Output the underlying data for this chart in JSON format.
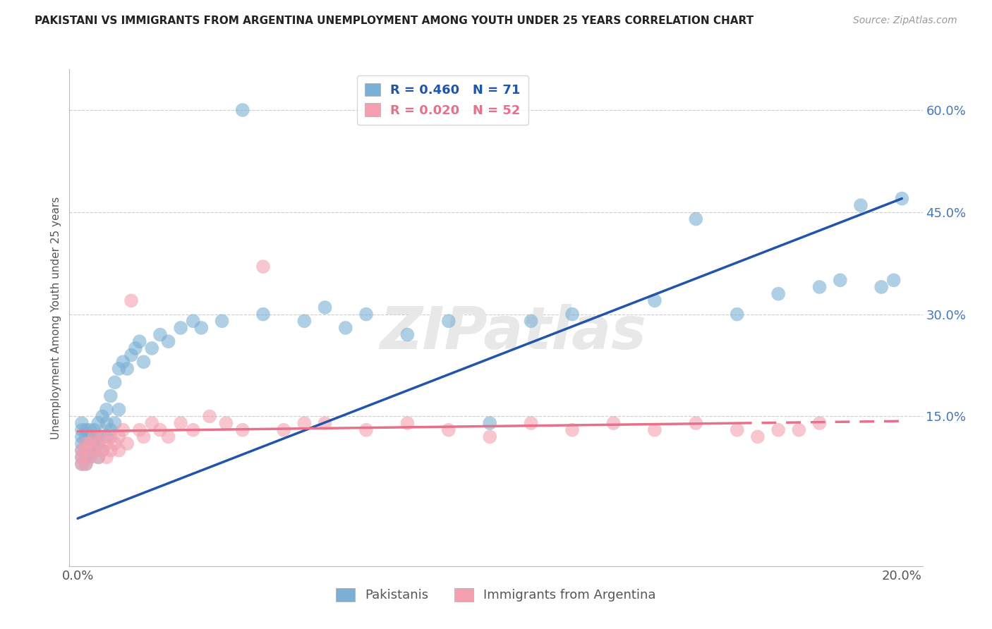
{
  "title": "PAKISTANI VS IMMIGRANTS FROM ARGENTINA UNEMPLOYMENT AMONG YOUTH UNDER 25 YEARS CORRELATION CHART",
  "source": "Source: ZipAtlas.com",
  "ylabel": "Unemployment Among Youth under 25 years",
  "xlim": [
    -0.002,
    0.205
  ],
  "ylim": [
    -0.07,
    0.66
  ],
  "ytick_positions": [
    0.15,
    0.3,
    0.45,
    0.6
  ],
  "ytick_labels": [
    "15.0%",
    "30.0%",
    "45.0%",
    "60.0%"
  ],
  "blue_R": 0.46,
  "blue_N": 71,
  "pink_R": 0.02,
  "pink_N": 52,
  "blue_color": "#7BAFD4",
  "pink_color": "#F4A0B0",
  "blue_line_color": "#2255AA",
  "pink_line_color": "#E8708A",
  "legend_label_blue": "Pakistanis",
  "legend_label_pink": "Immigrants from Argentina",
  "watermark": "ZIPatlas",
  "blue_line_x0": 0.0,
  "blue_line_y0": 0.0,
  "blue_line_x1": 0.2,
  "blue_line_y1": 0.47,
  "pink_line_x0": 0.0,
  "pink_line_y0": 0.128,
  "pink_line_x1": 0.2,
  "pink_line_y1": 0.143,
  "blue_scatter_x": [
    0.001,
    0.001,
    0.001,
    0.001,
    0.001,
    0.001,
    0.001,
    0.002,
    0.002,
    0.002,
    0.002,
    0.002,
    0.002,
    0.003,
    0.003,
    0.003,
    0.003,
    0.003,
    0.004,
    0.004,
    0.004,
    0.004,
    0.005,
    0.005,
    0.005,
    0.005,
    0.006,
    0.006,
    0.007,
    0.007,
    0.007,
    0.008,
    0.008,
    0.009,
    0.009,
    0.01,
    0.01,
    0.011,
    0.012,
    0.013,
    0.014,
    0.015,
    0.016,
    0.018,
    0.02,
    0.022,
    0.025,
    0.028,
    0.03,
    0.035,
    0.04,
    0.045,
    0.055,
    0.06,
    0.065,
    0.07,
    0.08,
    0.09,
    0.1,
    0.11,
    0.12,
    0.14,
    0.15,
    0.16,
    0.17,
    0.18,
    0.185,
    0.19,
    0.195,
    0.198,
    0.2
  ],
  "blue_scatter_y": [
    0.08,
    0.09,
    0.1,
    0.11,
    0.12,
    0.13,
    0.14,
    0.08,
    0.09,
    0.1,
    0.11,
    0.12,
    0.13,
    0.09,
    0.1,
    0.11,
    0.12,
    0.13,
    0.1,
    0.11,
    0.12,
    0.13,
    0.09,
    0.11,
    0.12,
    0.14,
    0.1,
    0.15,
    0.12,
    0.14,
    0.16,
    0.13,
    0.18,
    0.14,
    0.2,
    0.16,
    0.22,
    0.23,
    0.22,
    0.24,
    0.25,
    0.26,
    0.23,
    0.25,
    0.27,
    0.26,
    0.28,
    0.29,
    0.28,
    0.29,
    0.6,
    0.3,
    0.29,
    0.31,
    0.28,
    0.3,
    0.27,
    0.29,
    0.14,
    0.29,
    0.3,
    0.32,
    0.44,
    0.3,
    0.33,
    0.34,
    0.35,
    0.46,
    0.34,
    0.35,
    0.47
  ],
  "pink_scatter_x": [
    0.001,
    0.001,
    0.001,
    0.002,
    0.002,
    0.002,
    0.003,
    0.003,
    0.004,
    0.004,
    0.005,
    0.005,
    0.006,
    0.006,
    0.007,
    0.007,
    0.008,
    0.008,
    0.009,
    0.01,
    0.01,
    0.011,
    0.012,
    0.013,
    0.015,
    0.016,
    0.018,
    0.02,
    0.022,
    0.025,
    0.028,
    0.032,
    0.036,
    0.04,
    0.045,
    0.05,
    0.055,
    0.06,
    0.07,
    0.08,
    0.09,
    0.1,
    0.11,
    0.12,
    0.13,
    0.14,
    0.15,
    0.16,
    0.165,
    0.17,
    0.175,
    0.18
  ],
  "pink_scatter_y": [
    0.08,
    0.09,
    0.1,
    0.08,
    0.1,
    0.11,
    0.09,
    0.11,
    0.1,
    0.12,
    0.09,
    0.11,
    0.1,
    0.12,
    0.09,
    0.11,
    0.1,
    0.12,
    0.11,
    0.1,
    0.12,
    0.13,
    0.11,
    0.32,
    0.13,
    0.12,
    0.14,
    0.13,
    0.12,
    0.14,
    0.13,
    0.15,
    0.14,
    0.13,
    0.37,
    0.13,
    0.14,
    0.14,
    0.13,
    0.14,
    0.13,
    0.12,
    0.14,
    0.13,
    0.14,
    0.13,
    0.14,
    0.13,
    0.12,
    0.13,
    0.13,
    0.14
  ]
}
